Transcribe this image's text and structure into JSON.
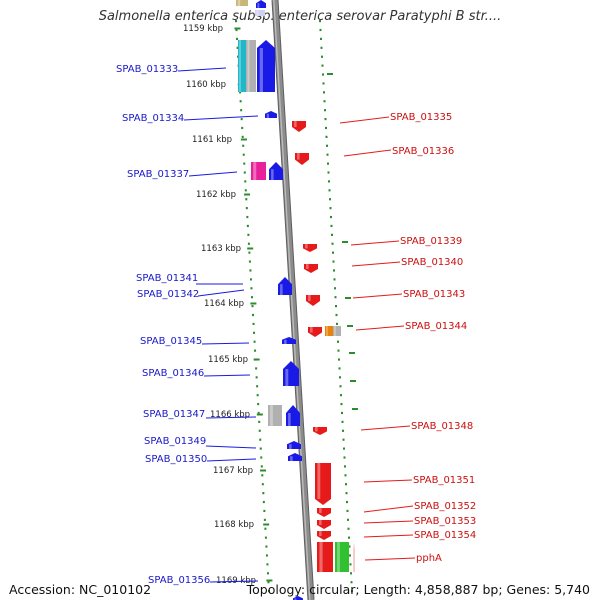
{
  "title": "Salmonella enterica subsp. enterica serovar Paratyphi B str....",
  "footer": {
    "accession": "Accession: NC_010102",
    "genome_info": "Topology: circular; Length: 4,858,887 bp; Genes: 5,740"
  },
  "kbp_labels": [
    "1159 kbp",
    "1160 kbp",
    "1161 kbp",
    "1162 kbp",
    "1163 kbp",
    "1164 kbp",
    "1165 kbp",
    "1166 kbp",
    "1167 kbp",
    "1168 kbp",
    "1169 kbp"
  ],
  "left_genes": [
    "SPAB_01333",
    "SPAB_01334",
    "SPAB_01337",
    "SPAB_01341",
    "SPAB_01342",
    "SPAB_01345",
    "SPAB_01346",
    "SPAB_01347",
    "SPAB_01349",
    "SPAB_01350",
    "SPAB_01356"
  ],
  "right_genes": [
    "SPAB_01335",
    "SPAB_01336",
    "SPAB_01339",
    "SPAB_01340",
    "SPAB_01343",
    "SPAB_01344",
    "SPAB_01348",
    "SPAB_01351",
    "SPAB_01352",
    "SPAB_01353",
    "SPAB_01354",
    "pphA"
  ],
  "colors": {
    "forward_strand": "#1a1ae6",
    "reverse_strand": "#e61a1a",
    "backbone": "#8c8c8c",
    "gc_dots": "#2e8b2e",
    "cyan_feature": "#20b8c8",
    "magenta_feature": "#e8209a",
    "orange_feature": "#e8820a",
    "green_feature": "#30c030",
    "gray_feature": "#b0b0b0"
  }
}
